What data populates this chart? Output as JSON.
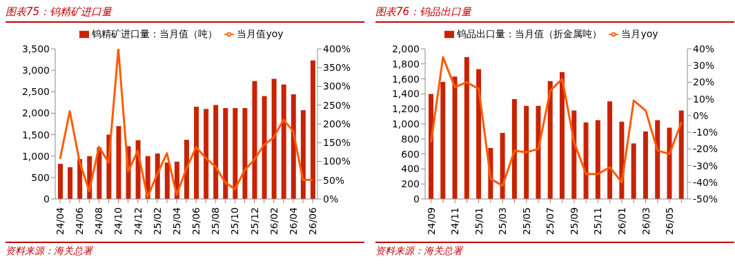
{
  "chart_data": [
    {
      "type": "bar",
      "title": "图表75：钨精矿进口量",
      "categories": [
        "24/04",
        null,
        "24/06",
        null,
        "24/08",
        null,
        "24/10",
        null,
        "24/12",
        null,
        "25/02",
        null,
        "25/04",
        null,
        "25/06",
        null,
        "25/08",
        null,
        "25/10",
        null,
        "25/12",
        null,
        "26/02",
        null,
        "26/04",
        null,
        "26/06"
      ],
      "series": [
        {
          "name": "钨精矿进口量：当月值（吨）",
          "color": "#c82300",
          "values": [
            820,
            740,
            930,
            1000,
            1200,
            1500,
            1700,
            1230,
            1370,
            1000,
            1060,
            850,
            870,
            1380,
            2150,
            2100,
            2190,
            2120,
            2120,
            2120,
            2750,
            2400,
            2800,
            2670,
            2440,
            2070,
            3230
          ]
        },
        {
          "name": "当月值yoy",
          "type": "line",
          "axis": "y2",
          "color": "#ff5a00",
          "values": [
            107,
            234,
            100,
            21,
            139,
            97,
            400,
            73,
            128,
            5,
            66,
            122,
            11,
            80,
            138,
            109,
            86,
            44,
            26,
            76,
            105,
            144,
            164,
            211,
            181,
            51,
            51
          ]
        }
      ],
      "ylim": [
        0,
        3500
      ],
      "yticks": [
        0,
        500,
        {
          "value": 1000,
          "label": "1,000"
        },
        {
          "value": 1500,
          "label": "1,500"
        },
        {
          "value": 2000,
          "label": "2,000"
        },
        {
          "value": 2500,
          "label": "2,500"
        },
        {
          "value": 3000,
          "label": "3,000"
        },
        {
          "value": 3500,
          "label": "3,500"
        }
      ],
      "y2lim": [
        0,
        400
      ],
      "y2ticks": [
        {
          "value": 0,
          "label": "0%"
        },
        {
          "value": 50,
          "label": "50%"
        },
        {
          "value": 100,
          "label": "100%"
        },
        {
          "value": 150,
          "label": "150%"
        },
        {
          "value": 200,
          "label": "200%"
        },
        {
          "value": 250,
          "label": "250%"
        },
        {
          "value": 300,
          "label": "300%"
        },
        {
          "value": 350,
          "label": "350%"
        },
        {
          "value": 400,
          "label": "400%"
        }
      ],
      "grid": false,
      "legend": "top",
      "marker": "none",
      "line_style": "solid",
      "annotations": [
        "资料来源：海关总署"
      ]
    },
    {
      "type": "bar",
      "title": "图表76：钨品出口量",
      "categories": [
        "24/09",
        null,
        "24/11",
        null,
        "25/01",
        null,
        "25/03",
        null,
        "25/05",
        null,
        "25/07",
        null,
        "25/09",
        null,
        "25/11",
        null,
        "26/01",
        null,
        "26/03",
        null,
        "26/05",
        null
      ],
      "series": [
        {
          "name": "钨品出口量：当月值（折金属吨）",
          "color": "#c82300",
          "values": [
            1400,
            1560,
            1630,
            1890,
            1730,
            680,
            880,
            1330,
            1240,
            1240,
            1570,
            1690,
            1180,
            1020,
            1050,
            1300,
            1030,
            740,
            900,
            1050,
            950,
            1180
          ]
        },
        {
          "name": "当月yoy",
          "type": "line",
          "axis": "y2",
          "color": "#ff5a00",
          "values": [
            -16,
            35,
            17,
            20,
            16,
            -38,
            -42,
            -21,
            -22,
            -20,
            15,
            22,
            -16,
            -35,
            -35,
            -31,
            -40,
            9,
            3,
            -21,
            -23,
            -4
          ]
        }
      ],
      "ylim": [
        0,
        2000
      ],
      "yticks": [
        0,
        200,
        400,
        600,
        800,
        {
          "value": 1000,
          "label": "1,000"
        },
        {
          "value": 1200,
          "label": "1,200"
        },
        {
          "value": 1400,
          "label": "1,400"
        },
        {
          "value": 1600,
          "label": "1,600"
        },
        {
          "value": 1800,
          "label": "1,800"
        },
        {
          "value": 2000,
          "label": "2,000"
        }
      ],
      "y2lim": [
        -50,
        40
      ],
      "y2ticks": [
        {
          "value": -50,
          "label": "-50%"
        },
        {
          "value": -40,
          "label": "-40%"
        },
        {
          "value": -30,
          "label": "-30%"
        },
        {
          "value": -20,
          "label": "-20%"
        },
        {
          "value": -10,
          "label": "-10%"
        },
        {
          "value": 0,
          "label": "0%"
        },
        {
          "value": 10,
          "label": "10%"
        },
        {
          "value": 20,
          "label": "20%"
        },
        {
          "value": 30,
          "label": "30%"
        },
        {
          "value": 40,
          "label": "40%"
        }
      ],
      "grid": false,
      "legend": "top",
      "marker": "none",
      "line_style": "solid",
      "annotations": [
        "资料来源：海关总署"
      ]
    }
  ]
}
